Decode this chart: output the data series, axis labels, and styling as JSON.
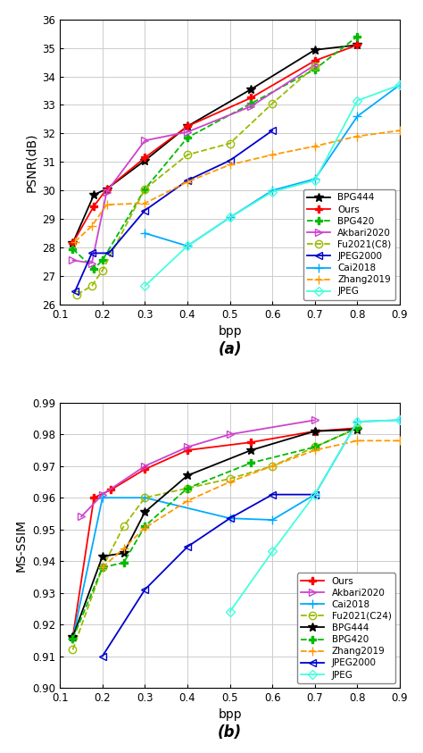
{
  "plot_a": {
    "title": "(a)",
    "xlabel": "bpp",
    "ylabel": "PSNR(dB)",
    "xlim": [
      0.1,
      0.9
    ],
    "ylim": [
      26,
      36
    ],
    "xticks": [
      0.1,
      0.2,
      0.3,
      0.4,
      0.5,
      0.6,
      0.7,
      0.8,
      0.9
    ],
    "yticks": [
      26,
      27,
      28,
      29,
      30,
      31,
      32,
      33,
      34,
      35,
      36
    ],
    "series": [
      {
        "label": "BPG444",
        "color": "#000000",
        "linestyle": "-",
        "marker": "*",
        "markersize": 7,
        "markerfacecolor": "#000000",
        "linewidth": 1.3,
        "x": [
          0.13,
          0.18,
          0.21,
          0.3,
          0.4,
          0.55,
          0.7,
          0.8
        ],
        "y": [
          28.15,
          29.85,
          30.05,
          31.05,
          32.25,
          33.55,
          34.93,
          35.1
        ]
      },
      {
        "label": "Ours",
        "color": "#ff0000",
        "linestyle": "-",
        "marker": "P",
        "markersize": 6,
        "markerfacecolor": "#ff0000",
        "linewidth": 1.3,
        "x": [
          0.13,
          0.18,
          0.21,
          0.3,
          0.4,
          0.55,
          0.7,
          0.8
        ],
        "y": [
          28.15,
          29.45,
          30.05,
          31.15,
          32.25,
          33.25,
          34.55,
          35.1
        ]
      },
      {
        "label": "BPG420",
        "color": "#00bb00",
        "linestyle": "--",
        "marker": "P",
        "markersize": 6,
        "markerfacecolor": "#00bb00",
        "linewidth": 1.3,
        "x": [
          0.13,
          0.18,
          0.2,
          0.3,
          0.4,
          0.55,
          0.7,
          0.8
        ],
        "y": [
          27.95,
          27.25,
          27.55,
          30.05,
          31.85,
          33.05,
          34.25,
          35.4
        ]
      },
      {
        "label": "Akbari2020",
        "color": "#cc44cc",
        "linestyle": "-",
        "marker": ">",
        "markersize": 6,
        "markerfacecolor": "none",
        "markeredgecolor": "#cc44cc",
        "linewidth": 1.3,
        "x": [
          0.13,
          0.175,
          0.21,
          0.3,
          0.4,
          0.55,
          0.7
        ],
        "y": [
          27.55,
          27.45,
          29.95,
          31.75,
          32.05,
          32.95,
          34.4
        ]
      },
      {
        "label": "Fu2021(C8)",
        "color": "#99bb00",
        "linestyle": "--",
        "marker": "o",
        "markersize": 6,
        "markerfacecolor": "none",
        "markeredgecolor": "#99bb00",
        "linewidth": 1.3,
        "x": [
          0.14,
          0.175,
          0.2,
          0.3,
          0.4,
          0.5,
          0.6,
          0.7
        ],
        "y": [
          26.35,
          26.65,
          27.2,
          30.05,
          31.25,
          31.65,
          33.05,
          34.35
        ]
      },
      {
        "label": "JPEG2000",
        "color": "#0000cc",
        "linestyle": "-",
        "marker": "<",
        "markersize": 6,
        "markerfacecolor": "none",
        "markeredgecolor": "#0000cc",
        "linewidth": 1.3,
        "x": [
          0.135,
          0.175,
          0.215,
          0.3,
          0.4,
          0.5,
          0.6
        ],
        "y": [
          26.45,
          27.8,
          27.8,
          29.3,
          30.35,
          31.05,
          32.1
        ]
      },
      {
        "label": "Cai2018",
        "color": "#00aaff",
        "linestyle": "-",
        "marker": "+",
        "markersize": 7,
        "markerfacecolor": "#00aaff",
        "linewidth": 1.3,
        "x": [
          0.3,
          0.4,
          0.5,
          0.6,
          0.7,
          0.8,
          0.9
        ],
        "y": [
          28.5,
          28.05,
          29.05,
          30.0,
          30.4,
          32.6,
          33.7
        ]
      },
      {
        "label": "Zhang2019",
        "color": "#ff9900",
        "linestyle": "--",
        "marker": "+",
        "markersize": 7,
        "markerfacecolor": "#ff9900",
        "linewidth": 1.3,
        "x": [
          0.135,
          0.175,
          0.21,
          0.3,
          0.4,
          0.5,
          0.6,
          0.7,
          0.8,
          0.9
        ],
        "y": [
          28.2,
          28.75,
          29.5,
          29.55,
          30.3,
          30.9,
          31.25,
          31.55,
          31.9,
          32.1
        ]
      },
      {
        "label": "JPEG",
        "color": "#44ffdd",
        "linestyle": "-",
        "marker": "D",
        "markersize": 5,
        "markerfacecolor": "none",
        "markeredgecolor": "#44ffdd",
        "linewidth": 1.3,
        "x": [
          0.3,
          0.4,
          0.5,
          0.6,
          0.7,
          0.8,
          0.9
        ],
        "y": [
          26.65,
          28.05,
          29.05,
          29.95,
          30.35,
          33.15,
          33.7
        ]
      }
    ]
  },
  "plot_b": {
    "title": "(b)",
    "xlabel": "bpp",
    "ylabel": "MS-SSIM",
    "xlim": [
      0.1,
      0.9
    ],
    "ylim": [
      0.9,
      0.99
    ],
    "xticks": [
      0.1,
      0.2,
      0.3,
      0.4,
      0.5,
      0.6,
      0.7,
      0.8,
      0.9
    ],
    "yticks": [
      0.9,
      0.91,
      0.92,
      0.93,
      0.94,
      0.95,
      0.96,
      0.97,
      0.98,
      0.99
    ],
    "series": [
      {
        "label": "Ours",
        "color": "#ff0000",
        "linestyle": "-",
        "marker": "P",
        "markersize": 6,
        "markerfacecolor": "#ff0000",
        "linewidth": 1.3,
        "x": [
          0.13,
          0.18,
          0.22,
          0.3,
          0.4,
          0.55,
          0.7,
          0.8
        ],
        "y": [
          0.916,
          0.96,
          0.9625,
          0.969,
          0.975,
          0.9775,
          0.981,
          0.982
        ]
      },
      {
        "label": "Akbari2020",
        "color": "#cc44cc",
        "linestyle": "-",
        "marker": ">",
        "markersize": 6,
        "markerfacecolor": "none",
        "markeredgecolor": "#cc44cc",
        "linewidth": 1.3,
        "x": [
          0.15,
          0.2,
          0.3,
          0.4,
          0.5,
          0.7
        ],
        "y": [
          0.954,
          0.961,
          0.97,
          0.976,
          0.98,
          0.9845
        ]
      },
      {
        "label": "Cai2018",
        "color": "#00aaff",
        "linestyle": "-",
        "marker": "+",
        "markersize": 7,
        "markerfacecolor": "#00aaff",
        "linewidth": 1.3,
        "x": [
          0.13,
          0.2,
          0.3,
          0.5,
          0.6,
          0.7,
          0.8,
          0.9
        ],
        "y": [
          0.9155,
          0.96,
          0.96,
          0.9535,
          0.953,
          0.961,
          0.984,
          0.9845
        ]
      },
      {
        "label": "Fu2021(C24)",
        "color": "#99bb00",
        "linestyle": "--",
        "marker": "o",
        "markersize": 6,
        "markerfacecolor": "none",
        "markeredgecolor": "#99bb00",
        "linewidth": 1.3,
        "x": [
          0.13,
          0.2,
          0.25,
          0.3,
          0.4,
          0.5,
          0.6,
          0.7,
          0.8
        ],
        "y": [
          0.912,
          0.938,
          0.951,
          0.96,
          0.963,
          0.966,
          0.97,
          0.976,
          0.982
        ]
      },
      {
        "label": "BPG444",
        "color": "#000000",
        "linestyle": "-",
        "marker": "*",
        "markersize": 7,
        "markerfacecolor": "#000000",
        "linewidth": 1.3,
        "x": [
          0.13,
          0.2,
          0.25,
          0.3,
          0.4,
          0.55,
          0.7,
          0.8
        ],
        "y": [
          0.916,
          0.9415,
          0.9425,
          0.9555,
          0.967,
          0.975,
          0.981,
          0.9815
        ]
      },
      {
        "label": "BPG420",
        "color": "#00bb00",
        "linestyle": "--",
        "marker": "P",
        "markersize": 6,
        "markerfacecolor": "#00bb00",
        "linewidth": 1.3,
        "x": [
          0.13,
          0.2,
          0.25,
          0.3,
          0.4,
          0.55,
          0.7,
          0.8
        ],
        "y": [
          0.9155,
          0.938,
          0.9395,
          0.951,
          0.963,
          0.971,
          0.976,
          0.982
        ]
      },
      {
        "label": "Zhang2019",
        "color": "#ff9900",
        "linestyle": "--",
        "marker": "+",
        "markersize": 7,
        "markerfacecolor": "#ff9900",
        "linewidth": 1.3,
        "x": [
          0.2,
          0.25,
          0.3,
          0.4,
          0.5,
          0.6,
          0.7,
          0.8,
          0.9
        ],
        "y": [
          0.938,
          0.944,
          0.9505,
          0.959,
          0.965,
          0.97,
          0.975,
          0.978,
          0.978
        ]
      },
      {
        "label": "JPEG2000",
        "color": "#0000cc",
        "linestyle": "-",
        "marker": "<",
        "markersize": 6,
        "markerfacecolor": "none",
        "markeredgecolor": "#0000cc",
        "linewidth": 1.3,
        "x": [
          0.2,
          0.3,
          0.4,
          0.5,
          0.6,
          0.7
        ],
        "y": [
          0.91,
          0.931,
          0.9445,
          0.9535,
          0.961,
          0.961
        ]
      },
      {
        "label": "JPEG",
        "color": "#44ffdd",
        "linestyle": "-",
        "marker": "D",
        "markersize": 5,
        "markerfacecolor": "none",
        "markeredgecolor": "#44ffdd",
        "linewidth": 1.3,
        "x": [
          0.5,
          0.6,
          0.7,
          0.8,
          0.9
        ],
        "y": [
          0.924,
          0.943,
          0.961,
          0.984,
          0.9845
        ]
      }
    ]
  }
}
